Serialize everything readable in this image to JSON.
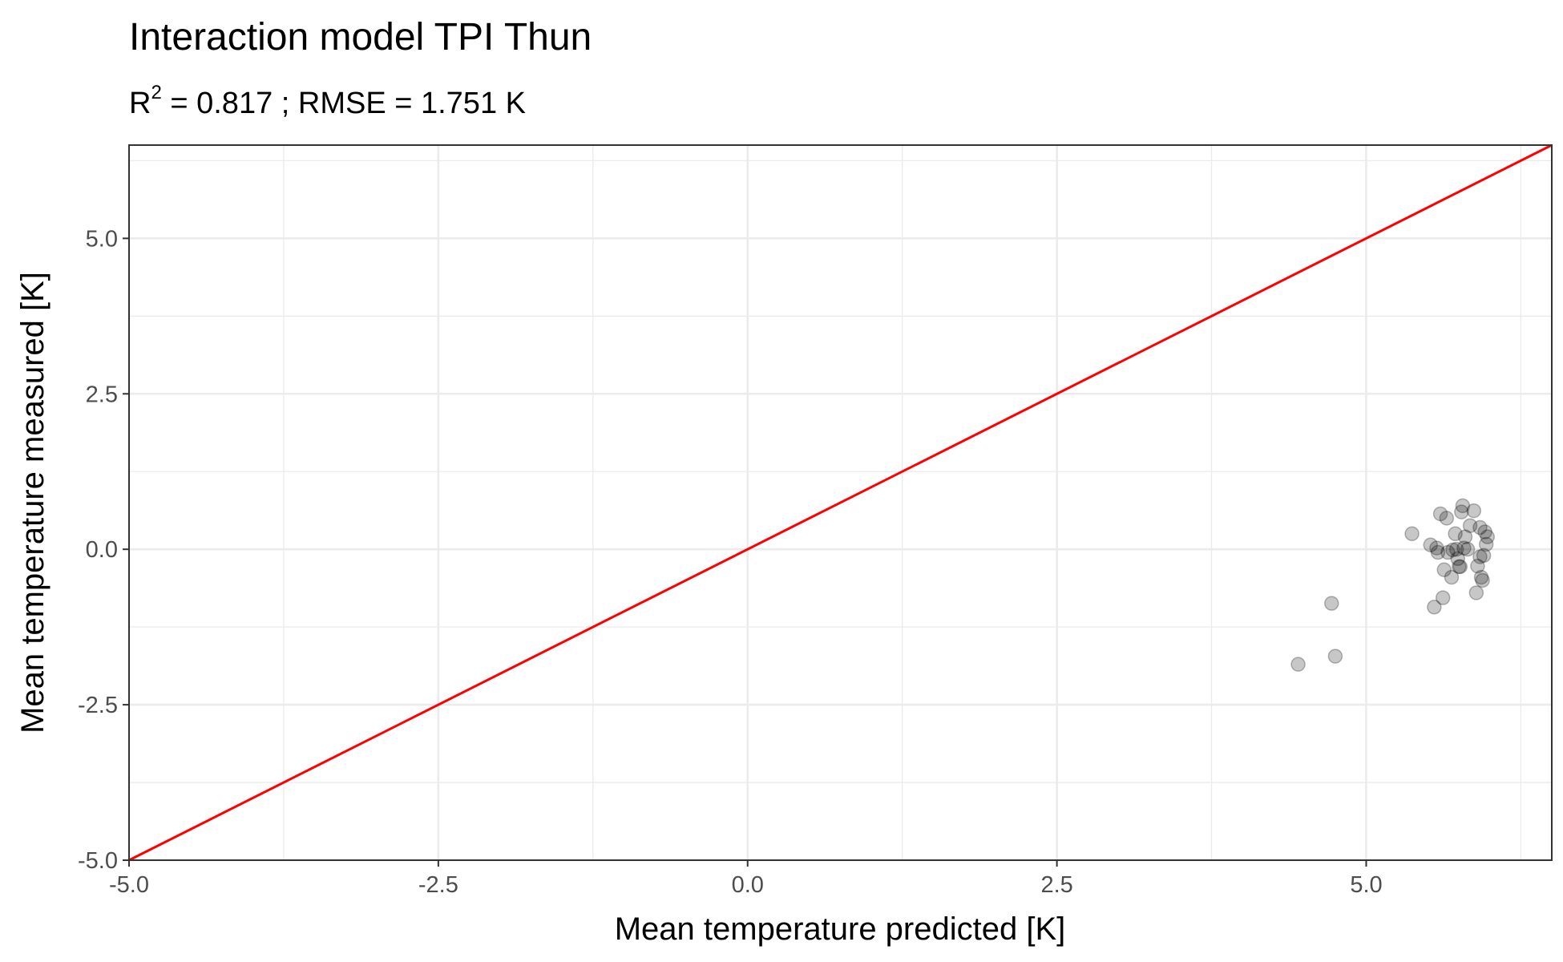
{
  "chart_data": {
    "type": "scatter",
    "title": "Interaction model TPI Thun",
    "subtitle": {
      "r_symbol": "R",
      "r_exponent": "2",
      "rest": " = 0.817 ; RMSE = 1.751 K"
    },
    "xlabel": "Mean temperature predicted [K]",
    "ylabel": "Mean temperature measured [K]",
    "xlim": [
      -5.0,
      6.5
    ],
    "ylim": [
      -5.0,
      6.5
    ],
    "x_ticks": [
      {
        "value": -5.0,
        "label": "-5.0"
      },
      {
        "value": -2.5,
        "label": "-2.5"
      },
      {
        "value": 0.0,
        "label": "0.0"
      },
      {
        "value": 2.5,
        "label": "2.5"
      },
      {
        "value": 5.0,
        "label": "5.0"
      }
    ],
    "y_ticks": [
      {
        "value": -5.0,
        "label": "-5.0"
      },
      {
        "value": -2.5,
        "label": "-2.5"
      },
      {
        "value": 0.0,
        "label": "0.0"
      },
      {
        "value": 2.5,
        "label": "2.5"
      },
      {
        "value": 5.0,
        "label": "5.0"
      }
    ],
    "minor_grid": [
      -3.75,
      -1.25,
      1.25,
      3.75,
      6.25
    ],
    "grid": true,
    "legend": "none",
    "reference_line": {
      "x": [
        -5.0,
        6.5
      ],
      "y": [
        -5.0,
        6.5
      ],
      "color": "#ff0000"
    },
    "point_color": "#000000",
    "point_alpha": 0.22,
    "points": [
      [
        4.45,
        -1.85
      ],
      [
        4.72,
        -0.87
      ],
      [
        4.75,
        -1.72
      ],
      [
        5.37,
        0.25
      ],
      [
        5.52,
        0.07
      ],
      [
        5.55,
        -0.93
      ],
      [
        5.57,
        0.02
      ],
      [
        5.58,
        -0.05
      ],
      [
        5.6,
        0.57
      ],
      [
        5.62,
        -0.78
      ],
      [
        5.63,
        -0.33
      ],
      [
        5.65,
        0.5
      ],
      [
        5.66,
        -0.05
      ],
      [
        5.69,
        -0.45
      ],
      [
        5.7,
        -0.01
      ],
      [
        5.72,
        0.25
      ],
      [
        5.73,
        0.0
      ],
      [
        5.74,
        -0.15
      ],
      [
        5.75,
        -0.28
      ],
      [
        5.76,
        -0.28
      ],
      [
        5.77,
        0.6
      ],
      [
        5.78,
        0.7
      ],
      [
        5.79,
        0.02
      ],
      [
        5.8,
        0.2
      ],
      [
        5.82,
        0.0
      ],
      [
        5.84,
        0.38
      ],
      [
        5.87,
        0.62
      ],
      [
        5.89,
        -0.7
      ],
      [
        5.9,
        -0.27
      ],
      [
        5.92,
        0.35
      ],
      [
        5.92,
        -0.12
      ],
      [
        5.93,
        -0.45
      ],
      [
        5.94,
        -0.5
      ],
      [
        5.95,
        -0.1
      ],
      [
        5.96,
        0.28
      ],
      [
        5.97,
        0.08
      ],
      [
        5.98,
        0.2
      ]
    ]
  }
}
